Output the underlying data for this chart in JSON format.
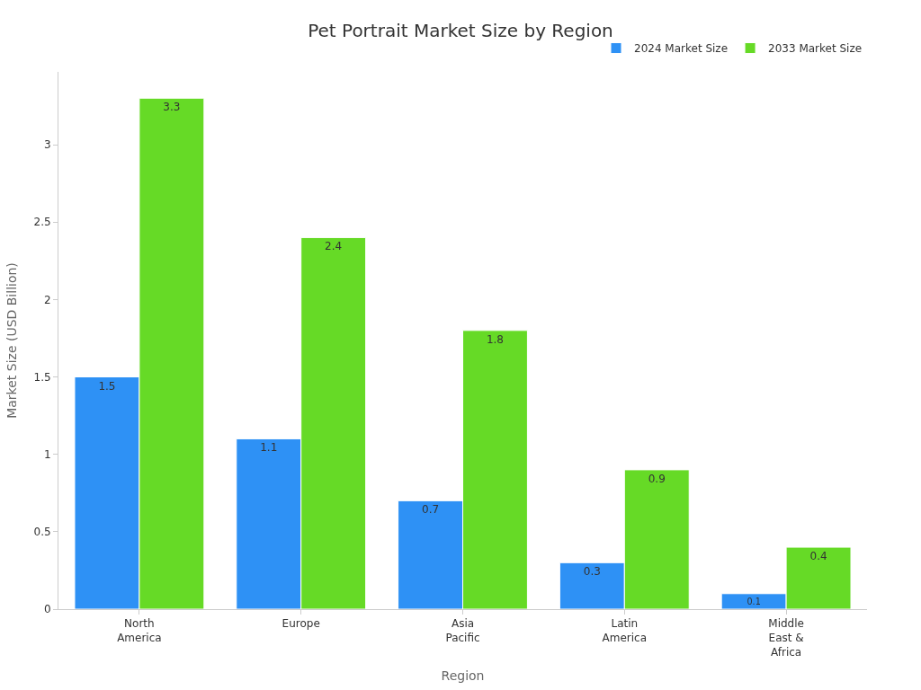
{
  "chart_data": {
    "type": "bar",
    "title": "Pet Portrait Market Size by Region",
    "xlabel": "Region",
    "ylabel": "Market Size (USD Billion)",
    "categories": [
      "North America",
      "Europe",
      "Asia Pacific",
      "Latin America",
      "Middle East & Africa"
    ],
    "series": [
      {
        "name": "2024 Market Size",
        "color": "#2e91f5",
        "values": [
          1.5,
          1.1,
          0.7,
          0.3,
          0.1
        ]
      },
      {
        "name": "2033 Market Size",
        "color": "#66da26",
        "values": [
          3.3,
          2.4,
          1.8,
          0.9,
          0.4
        ]
      }
    ],
    "ylim": [
      0,
      3.47
    ],
    "yticks": [
      0,
      0.5,
      1,
      1.5,
      2,
      2.5,
      3
    ],
    "grid": false,
    "legend": "top right",
    "data_labels": true
  }
}
